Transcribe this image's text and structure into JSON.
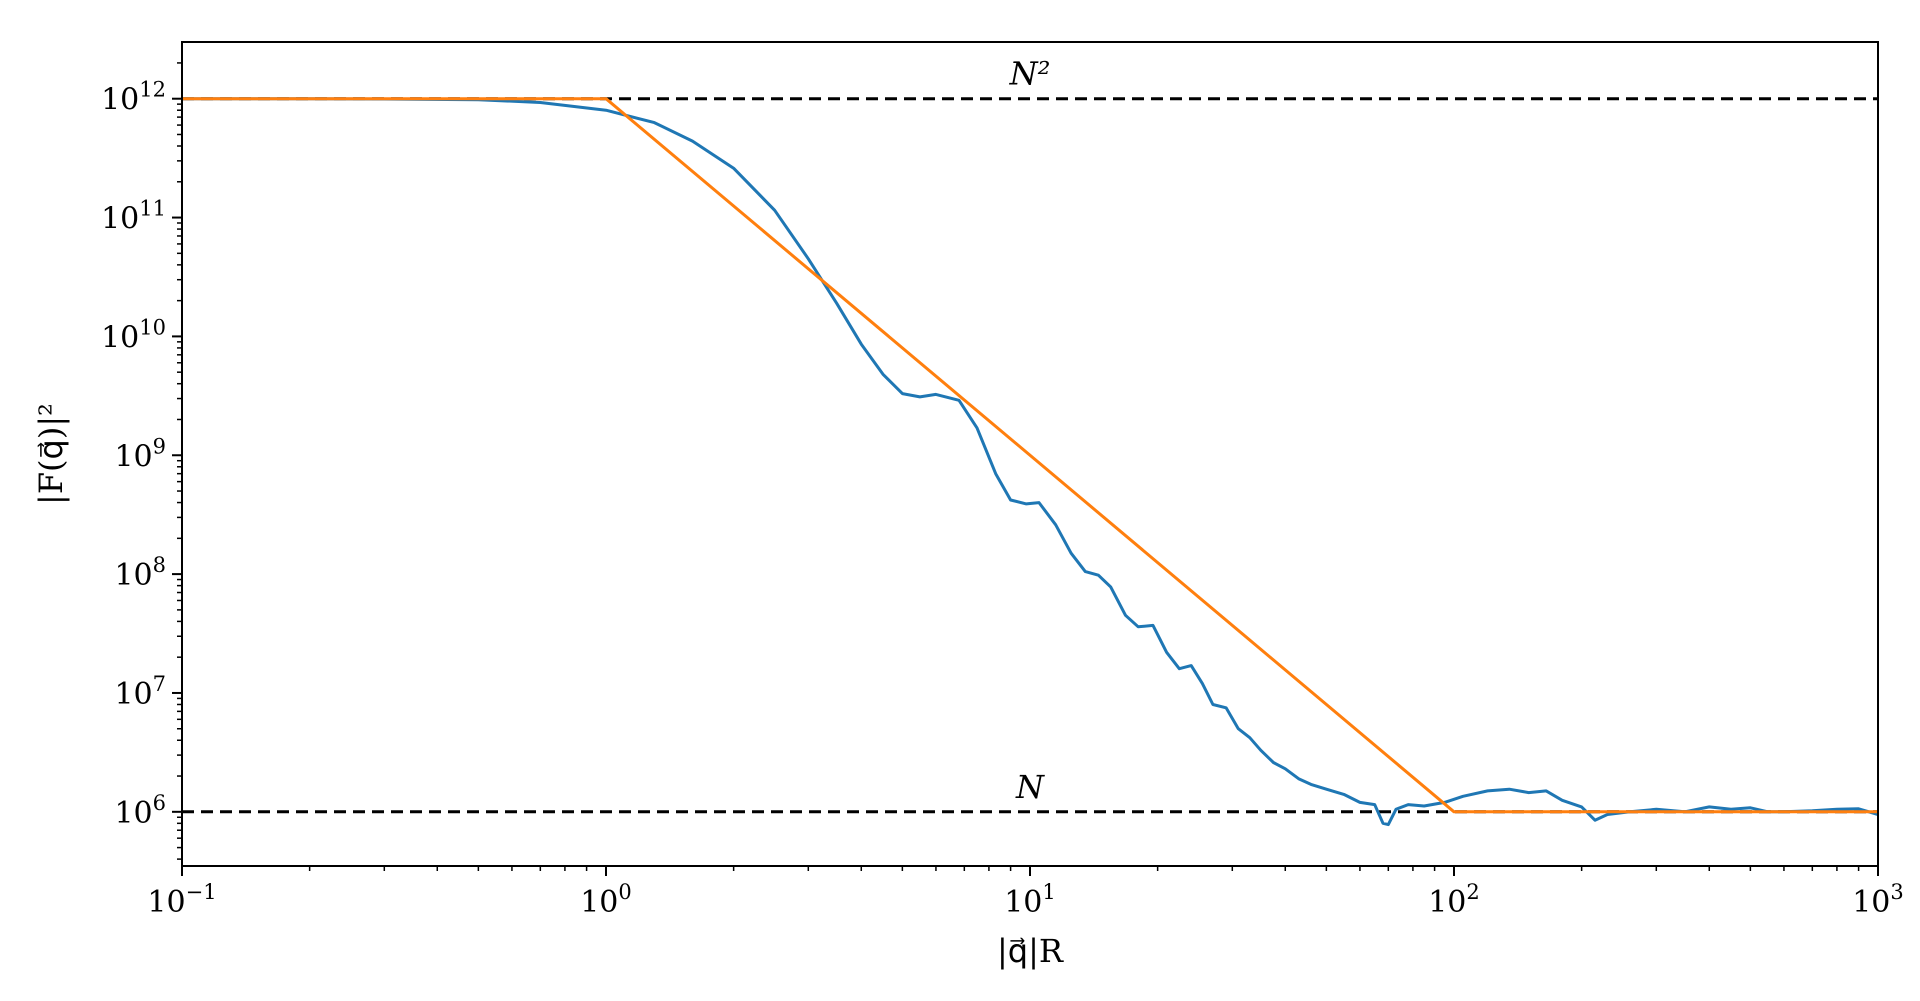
{
  "chart_data": {
    "type": "line",
    "x_scale": "log",
    "y_scale": "log",
    "xlim": [
      0.1,
      1000
    ],
    "ylim": [
      350000.0,
      3000000000000.0
    ],
    "xlabel": "|q⃗|R",
    "ylabel": "|F(q⃗)|²",
    "x_ticks": [
      {
        "value": 0.1,
        "base": "10",
        "exp": "−1"
      },
      {
        "value": 1,
        "base": "10",
        "exp": "0"
      },
      {
        "value": 10,
        "base": "10",
        "exp": "1"
      },
      {
        "value": 100,
        "base": "10",
        "exp": "2"
      },
      {
        "value": 1000,
        "base": "10",
        "exp": "3"
      }
    ],
    "y_ticks": [
      {
        "value": 1000000.0,
        "base": "10",
        "exp": "6"
      },
      {
        "value": 10000000.0,
        "base": "10",
        "exp": "7"
      },
      {
        "value": 100000000.0,
        "base": "10",
        "exp": "8"
      },
      {
        "value": 1000000000.0,
        "base": "10",
        "exp": "9"
      },
      {
        "value": 10000000000.0,
        "base": "10",
        "exp": "10"
      },
      {
        "value": 100000000000.0,
        "base": "10",
        "exp": "11"
      },
      {
        "value": 1000000000000.0,
        "base": "10",
        "exp": "12"
      }
    ],
    "reference_lines": [
      {
        "label": "N²",
        "y": 1000000000000.0,
        "style": "dashed",
        "color": "#000000"
      },
      {
        "label": "N",
        "y": 1000000.0,
        "style": "dashed",
        "color": "#000000"
      }
    ],
    "series": [
      {
        "color": "#1f77b4",
        "x": [
          0.1,
          0.2,
          0.3,
          0.5,
          0.7,
          1.0,
          1.3,
          1.6,
          2.0,
          2.5,
          3.0,
          3.5,
          4.0,
          4.5,
          5.0,
          5.5,
          6.0,
          6.8,
          7.5,
          8.3,
          9.0,
          9.8,
          10.5,
          11.5,
          12.5,
          13.5,
          14.5,
          15.5,
          16.8,
          18.0,
          19.5,
          21.0,
          22.5,
          24.0,
          25.5,
          27.0,
          29.0,
          31.0,
          33.0,
          35.0,
          37.5,
          40.0,
          43.0,
          46.0,
          50.0,
          55.0,
          60.0,
          65.0,
          68.0,
          70.0,
          73.0,
          78.0,
          85.0,
          95.0,
          105.0,
          120.0,
          135.0,
          150.0,
          165.0,
          180.0,
          200.0,
          215.0,
          230.0,
          260.0,
          300.0,
          350.0,
          400.0,
          450.0,
          500.0,
          550.0,
          600.0,
          700.0,
          800.0,
          900.0,
          1000.0
        ],
        "y": [
          1000000000000.0,
          998000000000.0,
          995000000000.0,
          980000000000.0,
          930000000000.0,
          800000000000.0,
          630000000000.0,
          440000000000.0,
          260000000000.0,
          115000000000.0,
          45000000000.0,
          19000000000.0,
          8600000000.0,
          4800000000.0,
          3300000000.0,
          3100000000.0,
          3250000000.0,
          2900000000.0,
          1700000000.0,
          700000000.0,
          420000000.0,
          390000000.0,
          400000000.0,
          260000000.0,
          150000000.0,
          105000000.0,
          98000000.0,
          78000000.0,
          45000000.0,
          36000000.0,
          37000000.0,
          22000000.0,
          16000000.0,
          17000000.0,
          12000000.0,
          8000000.0,
          7500000.0,
          5000000.0,
          4200000.0,
          3300000.0,
          2600000.0,
          2300000.0,
          1900000.0,
          1700000.0,
          1550000.0,
          1400000.0,
          1200000.0,
          1150000.0,
          800000.0,
          780000.0,
          1050000.0,
          1150000.0,
          1120000.0,
          1200000.0,
          1350000.0,
          1500000.0,
          1550000.0,
          1450000.0,
          1500000.0,
          1250000.0,
          1100000.0,
          850000.0,
          950000.0,
          1000000.0,
          1050000.0,
          1000000.0,
          1100000.0,
          1050000.0,
          1080000.0,
          1000000.0,
          1000000.0,
          1020000.0,
          1050000.0,
          1060000.0,
          950000.0
        ]
      },
      {
        "color": "#ff7f0e",
        "x": [
          0.1,
          1,
          100,
          1000
        ],
        "y": [
          1000000000000.0,
          1000000000000.0,
          1000000.0,
          1000000.0
        ]
      }
    ]
  }
}
